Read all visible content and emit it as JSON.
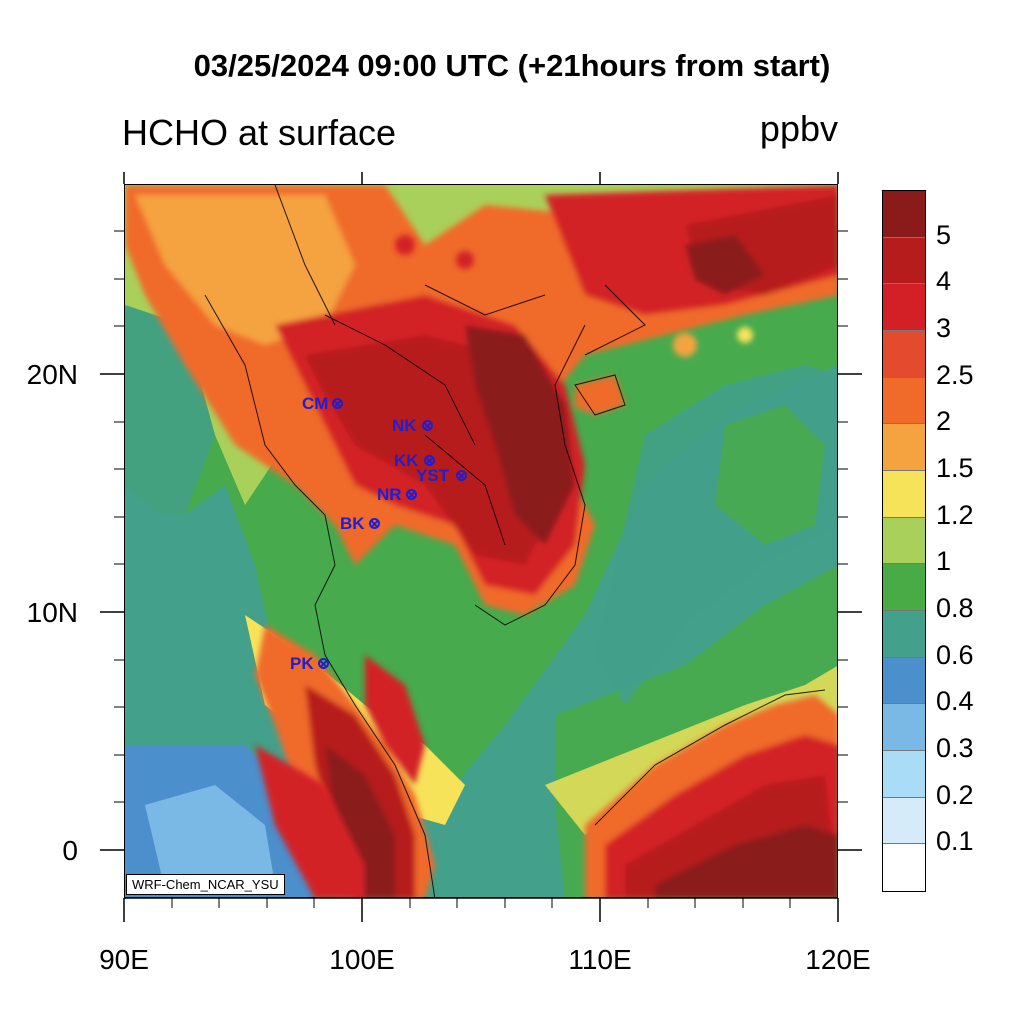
{
  "header": {
    "title": "03/25/2024 09:00 UTC (+21hours from start)",
    "subtitle": "HCHO at surface",
    "units": "ppbv"
  },
  "axes": {
    "x_ticks": [
      "90E",
      "100E",
      "110E",
      "120E"
    ],
    "y_ticks": [
      "20N",
      "10N",
      "0"
    ]
  },
  "credit": "WRF-Chem_NCAR_YSU",
  "stations": [
    {
      "name": "CM"
    },
    {
      "name": "NK"
    },
    {
      "name": "KK"
    },
    {
      "name": "YST"
    },
    {
      "name": "NR"
    },
    {
      "name": "BK"
    },
    {
      "name": "PK"
    }
  ],
  "legend": {
    "labels": [
      "5",
      "4",
      "3",
      "2.5",
      "2",
      "1.5",
      "1.2",
      "1",
      "0.8",
      "0.6",
      "0.4",
      "0.3",
      "0.2",
      "0.1"
    ],
    "colors": [
      "#8b1a1a",
      "#b71c1c",
      "#d32027",
      "#e34a2e",
      "#f06a2a",
      "#f4a340",
      "#f6e35a",
      "#a9d05a",
      "#48ab46",
      "#43a08a",
      "#4b8fcc",
      "#7ab8e6",
      "#a9dcf6",
      "#d5ebfa",
      "#ffffff"
    ]
  },
  "colors": {
    "ocean": "#43a08a",
    "station": "#1f1fd2"
  }
}
